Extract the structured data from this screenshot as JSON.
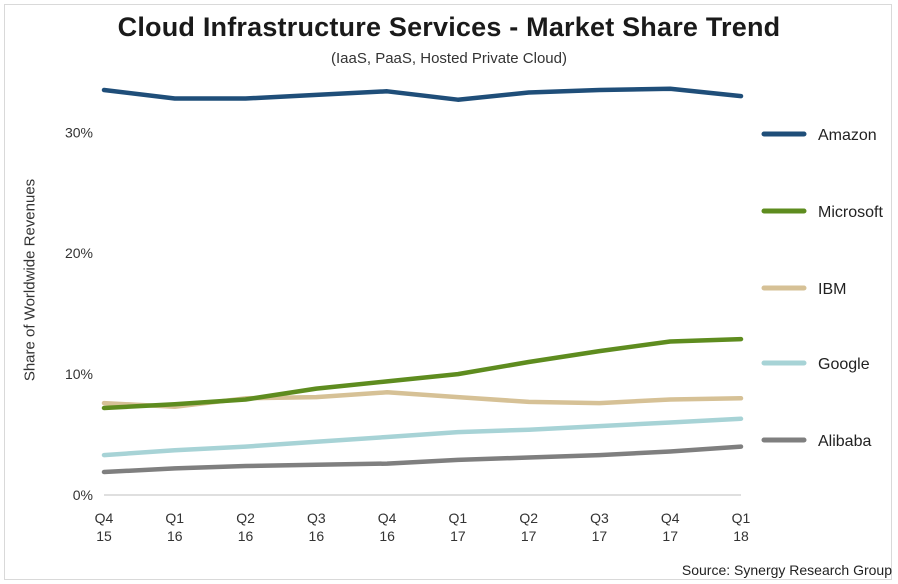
{
  "chart_data": {
    "type": "line",
    "title": "Cloud Infrastructure Services - Market Share Trend",
    "subtitle": "(IaaS, PaaS, Hosted Private Cloud)",
    "ylabel": "Share of Worldwide Revenues",
    "xlabel": "",
    "source": "Source: Synergy Research Group",
    "categories": [
      [
        "Q4",
        "15"
      ],
      [
        "Q1",
        "16"
      ],
      [
        "Q2",
        "16"
      ],
      [
        "Q3",
        "16"
      ],
      [
        "Q4",
        "16"
      ],
      [
        "Q1",
        "17"
      ],
      [
        "Q2",
        "17"
      ],
      [
        "Q3",
        "17"
      ],
      [
        "Q4",
        "17"
      ],
      [
        "Q1",
        "18"
      ]
    ],
    "yticks": [
      "0%",
      "10%",
      "20%",
      "30%"
    ],
    "ylim": [
      0,
      34
    ],
    "grid": false,
    "legend_position": "right",
    "series": [
      {
        "name": "Amazon",
        "color": "#1f4e79",
        "values": [
          33.5,
          32.8,
          32.8,
          33.1,
          33.4,
          32.7,
          33.3,
          33.5,
          33.6,
          33.0
        ]
      },
      {
        "name": "Microsoft",
        "color": "#5e8c1f",
        "values": [
          7.2,
          7.5,
          7.9,
          8.8,
          9.4,
          10.0,
          11.0,
          11.9,
          12.7,
          12.9
        ]
      },
      {
        "name": "IBM",
        "color": "#d6c196",
        "values": [
          7.6,
          7.3,
          8.0,
          8.1,
          8.5,
          8.1,
          7.7,
          7.6,
          7.9,
          8.0
        ]
      },
      {
        "name": "Google",
        "color": "#a7d3d6",
        "values": [
          3.3,
          3.7,
          4.0,
          4.4,
          4.8,
          5.2,
          5.4,
          5.7,
          6.0,
          6.3
        ]
      },
      {
        "name": "Alibaba",
        "color": "#7f7f7f",
        "values": [
          1.9,
          2.2,
          2.4,
          2.5,
          2.6,
          2.9,
          3.1,
          3.3,
          3.6,
          4.0
        ]
      }
    ]
  }
}
